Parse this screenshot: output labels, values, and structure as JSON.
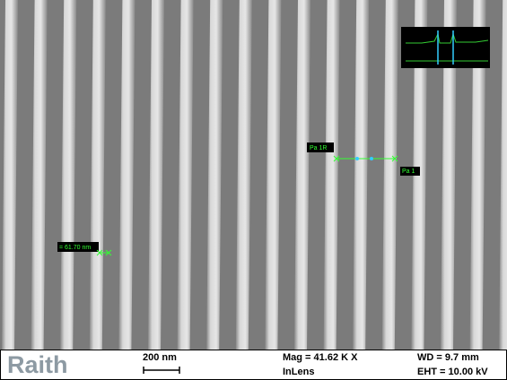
{
  "image": {
    "measurements": {
      "cursor_left": "Pa 1R",
      "cursor_right": "Pa 1",
      "width": "= 61.70 nm"
    }
  },
  "info_bar": {
    "logo": "Raith",
    "scale": "200 nm",
    "magnification": "Mag = 41.62 K X",
    "detector": "InLens",
    "working_distance": "WD = 9.7 mm",
    "voltage": "EHT = 10.00 kV"
  }
}
